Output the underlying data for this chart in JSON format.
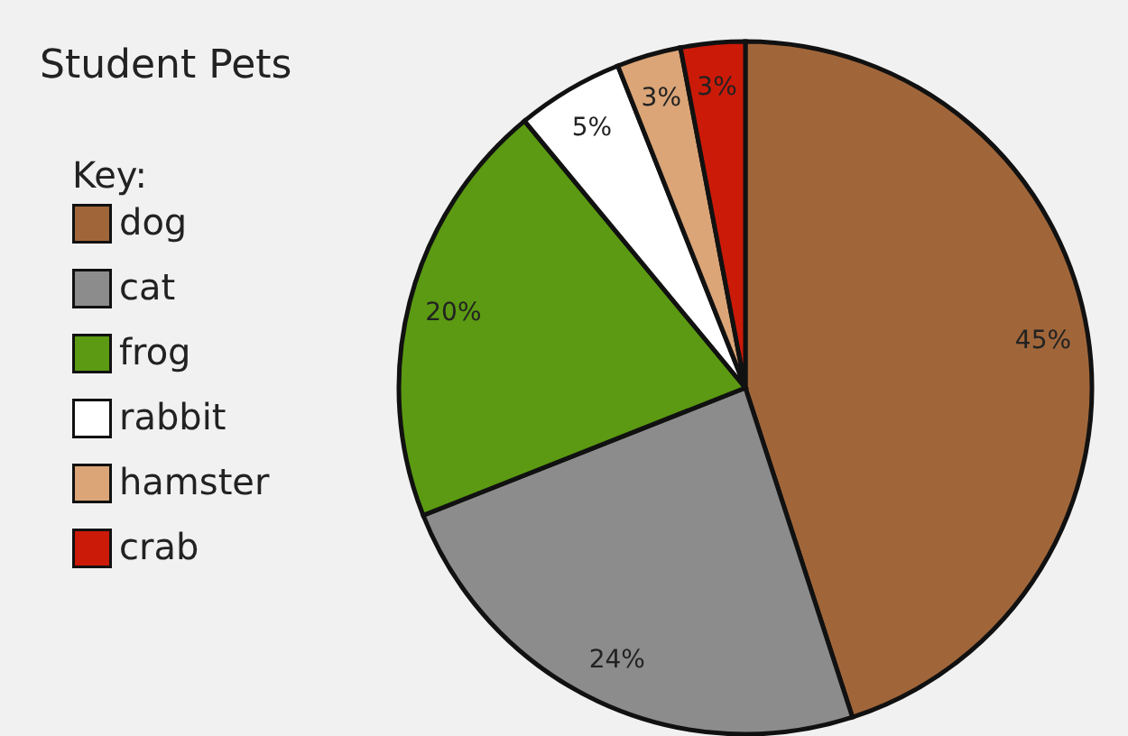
{
  "chart_data": {
    "type": "pie",
    "title": "Student Pets",
    "legend_title": "Key:",
    "legend": "left",
    "categories": [
      "dog",
      "cat",
      "frog",
      "rabbit",
      "hamster",
      "crab"
    ],
    "values": [
      45,
      24,
      20,
      5,
      3,
      3
    ],
    "value_labels": [
      "45%",
      "24%",
      "20%",
      "5%",
      "3%",
      "3%"
    ],
    "colors": [
      "#a0663a",
      "#8c8c8c",
      "#5b9a12",
      "#ffffff",
      "#dba577",
      "#cc1a08"
    ]
  }
}
